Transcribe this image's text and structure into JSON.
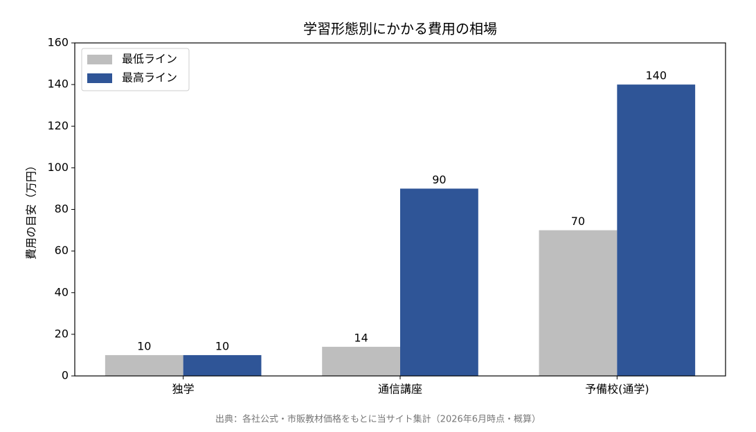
{
  "chart_data": {
    "type": "bar",
    "title": "学習形態別にかかる費用の相場",
    "y_label": "費用の目安（万円）",
    "categories": [
      "独学",
      "通信講座",
      "予備校(通学)"
    ],
    "series": [
      {
        "name": "最低ライン",
        "color": "#bebebe",
        "values": [
          10,
          14,
          70
        ]
      },
      {
        "name": "最高ライン",
        "color": "#2f5597",
        "values": [
          10,
          90,
          140
        ]
      }
    ],
    "ylim": [
      0,
      160
    ],
    "yticks": [
      0,
      20,
      40,
      60,
      80,
      100,
      120,
      140,
      160
    ],
    "legend": "upper-left",
    "source": "出典：各社公式・市販教材価格をもとに当サイト集計（2026年6月時点・概算）"
  }
}
